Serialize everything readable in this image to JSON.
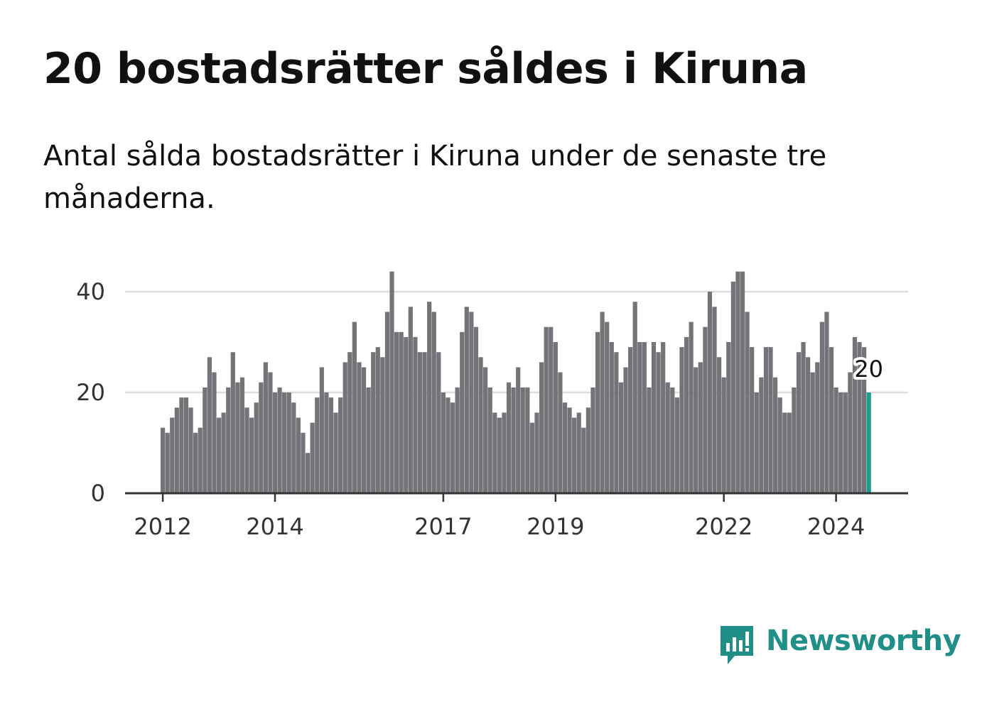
{
  "title": "20 bostadsrätter såldes i Kiruna",
  "subtitle": "Antal sålda bostadsrätter i Kiruna under de senaste tre månaderna.",
  "brand": {
    "name": "Newsworthy",
    "color": "#1f8f87",
    "icon": "chart-bubble-icon"
  },
  "colors": {
    "bar": "#737378",
    "highlight": "#1a9e8f",
    "grid": "#dddddd",
    "axis": "#333333"
  },
  "chart_data": {
    "type": "bar",
    "title": "20 bostadsrätter såldes i Kiruna",
    "xlabel": "",
    "ylabel": "",
    "ylim": [
      0,
      44
    ],
    "yticks": [
      0,
      20,
      40
    ],
    "xticks": [
      {
        "label": "2012",
        "index": 0
      },
      {
        "label": "2014",
        "index": 24
      },
      {
        "label": "2017",
        "index": 60
      },
      {
        "label": "2019",
        "index": 84
      },
      {
        "label": "2022",
        "index": 120
      },
      {
        "label": "2024",
        "index": 144
      }
    ],
    "start": "2012-01",
    "values": [
      13,
      12,
      15,
      17,
      19,
      19,
      17,
      12,
      13,
      21,
      27,
      24,
      15,
      16,
      21,
      28,
      22,
      23,
      17,
      15,
      18,
      22,
      26,
      24,
      20,
      21,
      20,
      20,
      18,
      15,
      12,
      8,
      14,
      19,
      25,
      20,
      19,
      16,
      19,
      26,
      28,
      34,
      26,
      25,
      21,
      28,
      29,
      27,
      36,
      44,
      32,
      32,
      31,
      37,
      31,
      28,
      28,
      38,
      36,
      28,
      20,
      19,
      18,
      21,
      32,
      37,
      36,
      33,
      27,
      25,
      21,
      16,
      15,
      16,
      22,
      21,
      25,
      21,
      21,
      14,
      16,
      26,
      33,
      33,
      30,
      24,
      18,
      17,
      15,
      16,
      13,
      17,
      21,
      32,
      36,
      34,
      30,
      28,
      22,
      25,
      29,
      38,
      30,
      30,
      21,
      30,
      28,
      30,
      22,
      21,
      19,
      29,
      31,
      34,
      25,
      26,
      33,
      40,
      37,
      27,
      23,
      30,
      42,
      44,
      44,
      36,
      29,
      20,
      23,
      29,
      29,
      23,
      19,
      16,
      16,
      21,
      28,
      30,
      27,
      24,
      26,
      34,
      36,
      29,
      21,
      20,
      20,
      24,
      31,
      30,
      29,
      20
    ],
    "highlight_last": true,
    "last_label": "20"
  }
}
